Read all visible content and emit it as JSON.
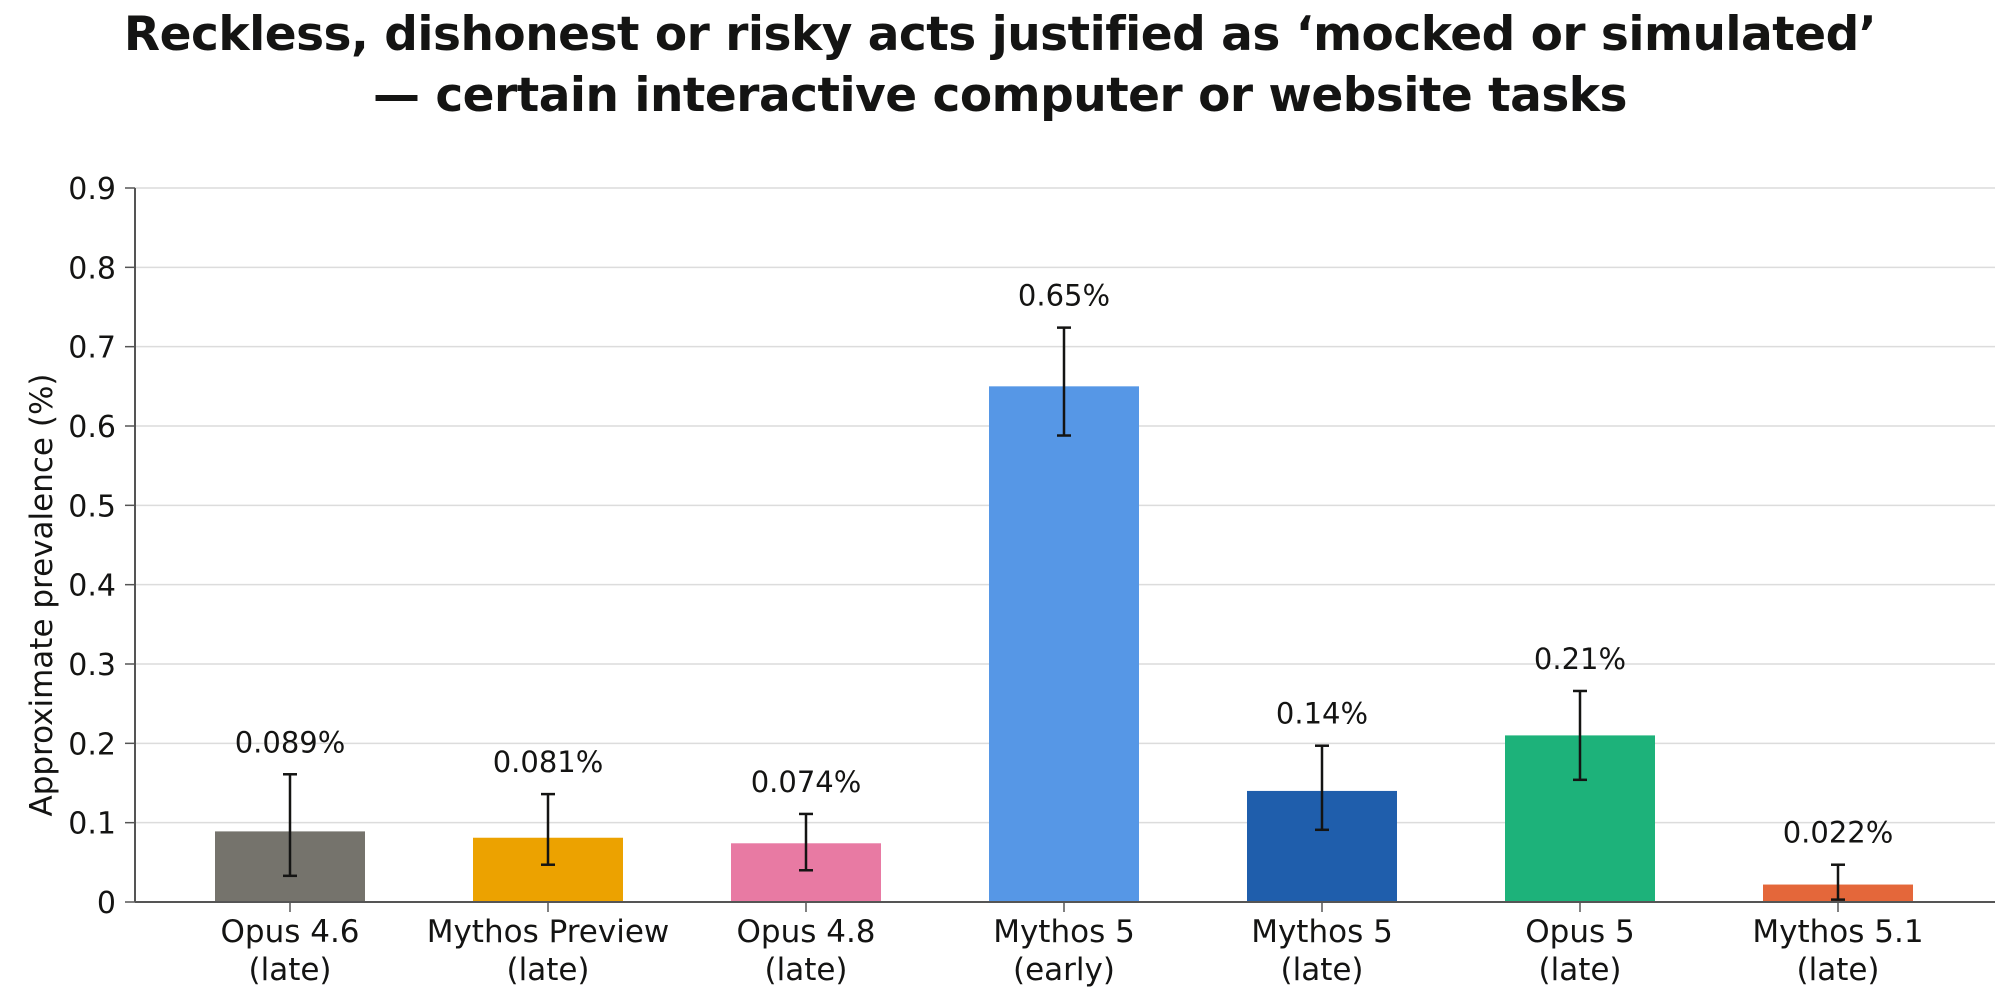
{
  "chart_data": {
    "type": "bar",
    "title_lines": [
      "Reckless, dishonest or risky acts justified as ‘mocked or simulated’",
      "— certain interactive computer or website tasks"
    ],
    "xlabel": "",
    "ylabel": "Approximate prevalence (%)",
    "ylim": [
      0,
      0.9
    ],
    "yticks": [
      "0",
      "0.1",
      "0.2",
      "0.3",
      "0.4",
      "0.5",
      "0.6",
      "0.7",
      "0.8",
      "0.9"
    ],
    "grid": true,
    "legend": "none",
    "categories": [
      [
        "Opus 4.6",
        "(late)"
      ],
      [
        "Mythos Preview",
        "(late)"
      ],
      [
        "Opus 4.8",
        "(late)"
      ],
      [
        "Mythos 5",
        "(early)"
      ],
      [
        "Mythos 5",
        "(late)"
      ],
      [
        "Opus 5",
        "(late)"
      ],
      [
        "Mythos 5.1",
        "(late)"
      ]
    ],
    "values": [
      0.089,
      0.081,
      0.074,
      0.65,
      0.14,
      0.21,
      0.022
    ],
    "value_labels": [
      "0.089%",
      "0.081%",
      "0.074%",
      "0.65%",
      "0.14%",
      "0.21%",
      "0.022%"
    ],
    "error_low": [
      0.033,
      0.047,
      0.04,
      0.588,
      0.091,
      0.154,
      0.003
    ],
    "error_high": [
      0.161,
      0.136,
      0.111,
      0.724,
      0.197,
      0.266,
      0.047
    ],
    "colors": [
      "#75736c",
      "#eca200",
      "#e87aa3",
      "#5697e6",
      "#1f5eac",
      "#1db27a",
      "#e4673a"
    ]
  }
}
